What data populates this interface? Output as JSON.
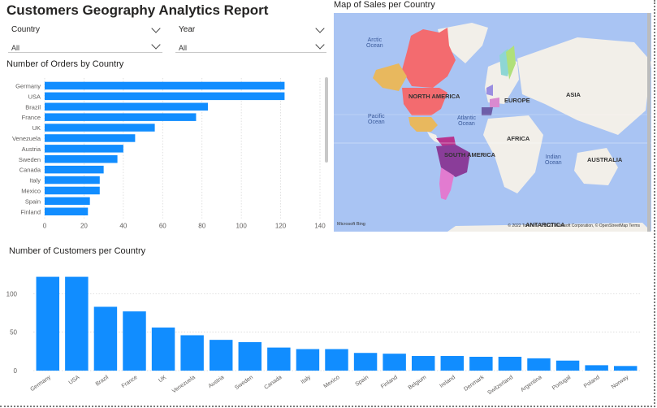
{
  "report": {
    "title": "Customers Geography Analytics Report"
  },
  "slicers": [
    {
      "label": "Country",
      "value": "All"
    },
    {
      "label": "Year",
      "value": "All"
    }
  ],
  "orders_chart": {
    "title": "Number of Orders by Country",
    "chart_data": {
      "type": "bar",
      "orientation": "horizontal",
      "categories": [
        "Germany",
        "USA",
        "Brazil",
        "France",
        "UK",
        "Venezuela",
        "Austria",
        "Sweden",
        "Canada",
        "Italy",
        "Mexico",
        "Spain",
        "Finland"
      ],
      "values": [
        122,
        122,
        83,
        77,
        56,
        46,
        40,
        37,
        30,
        28,
        28,
        23,
        22
      ],
      "xlim": [
        0,
        140
      ],
      "xticks": [
        0,
        20,
        40,
        60,
        80,
        100,
        120,
        140
      ],
      "color": "#118dff",
      "grid": true
    }
  },
  "map": {
    "title": "Map of Sales per Country",
    "labels": {
      "north_america": "NORTH AMERICA",
      "south_america": "SOUTH AMERICA",
      "europe": "EUROPE",
      "asia": "ASIA",
      "africa": "AFRICA",
      "australia": "AUSTRALIA",
      "antarctica": "ANTARCTICA",
      "arctic_ocean": "Arctic\nOcean",
      "pacific_ocean": "Pacific\nOcean",
      "atlantic_ocean": "Atlantic\nOcean",
      "indian_ocean": "Indian\nOcean"
    },
    "attribution": "© 2022 TomTom, © 2022 Microsoft Corporation, © OpenStreetMap  Terms",
    "provider_logo": "Microsoft Bing",
    "colors": {
      "water": "#a9c4f3",
      "land": "#f2efe9",
      "usa": "#f36b6f",
      "canada": "#f36b6f",
      "mexico": "#e8b85e",
      "brazil": "#8a3d99",
      "argentina": "#e27bd0",
      "venezuela": "#b8348e"
    }
  },
  "customers_chart": {
    "title": "Number of Customers per Country",
    "chart_data": {
      "type": "bar",
      "categories": [
        "Germany",
        "USA",
        "Brazil",
        "France",
        "UK",
        "Venezuela",
        "Austria",
        "Sweden",
        "Canada",
        "Italy",
        "Mexico",
        "Spain",
        "Finland",
        "Belgium",
        "Ireland",
        "Denmark",
        "Switzerland",
        "Argentina",
        "Portugal",
        "Poland",
        "Norway"
      ],
      "values": [
        122,
        122,
        83,
        77,
        56,
        46,
        40,
        37,
        30,
        28,
        28,
        23,
        22,
        19,
        19,
        18,
        18,
        16,
        13,
        7,
        6
      ],
      "ylim": [
        0,
        130
      ],
      "yticks": [
        0,
        50,
        100
      ],
      "color": "#118dff",
      "grid": true
    }
  }
}
